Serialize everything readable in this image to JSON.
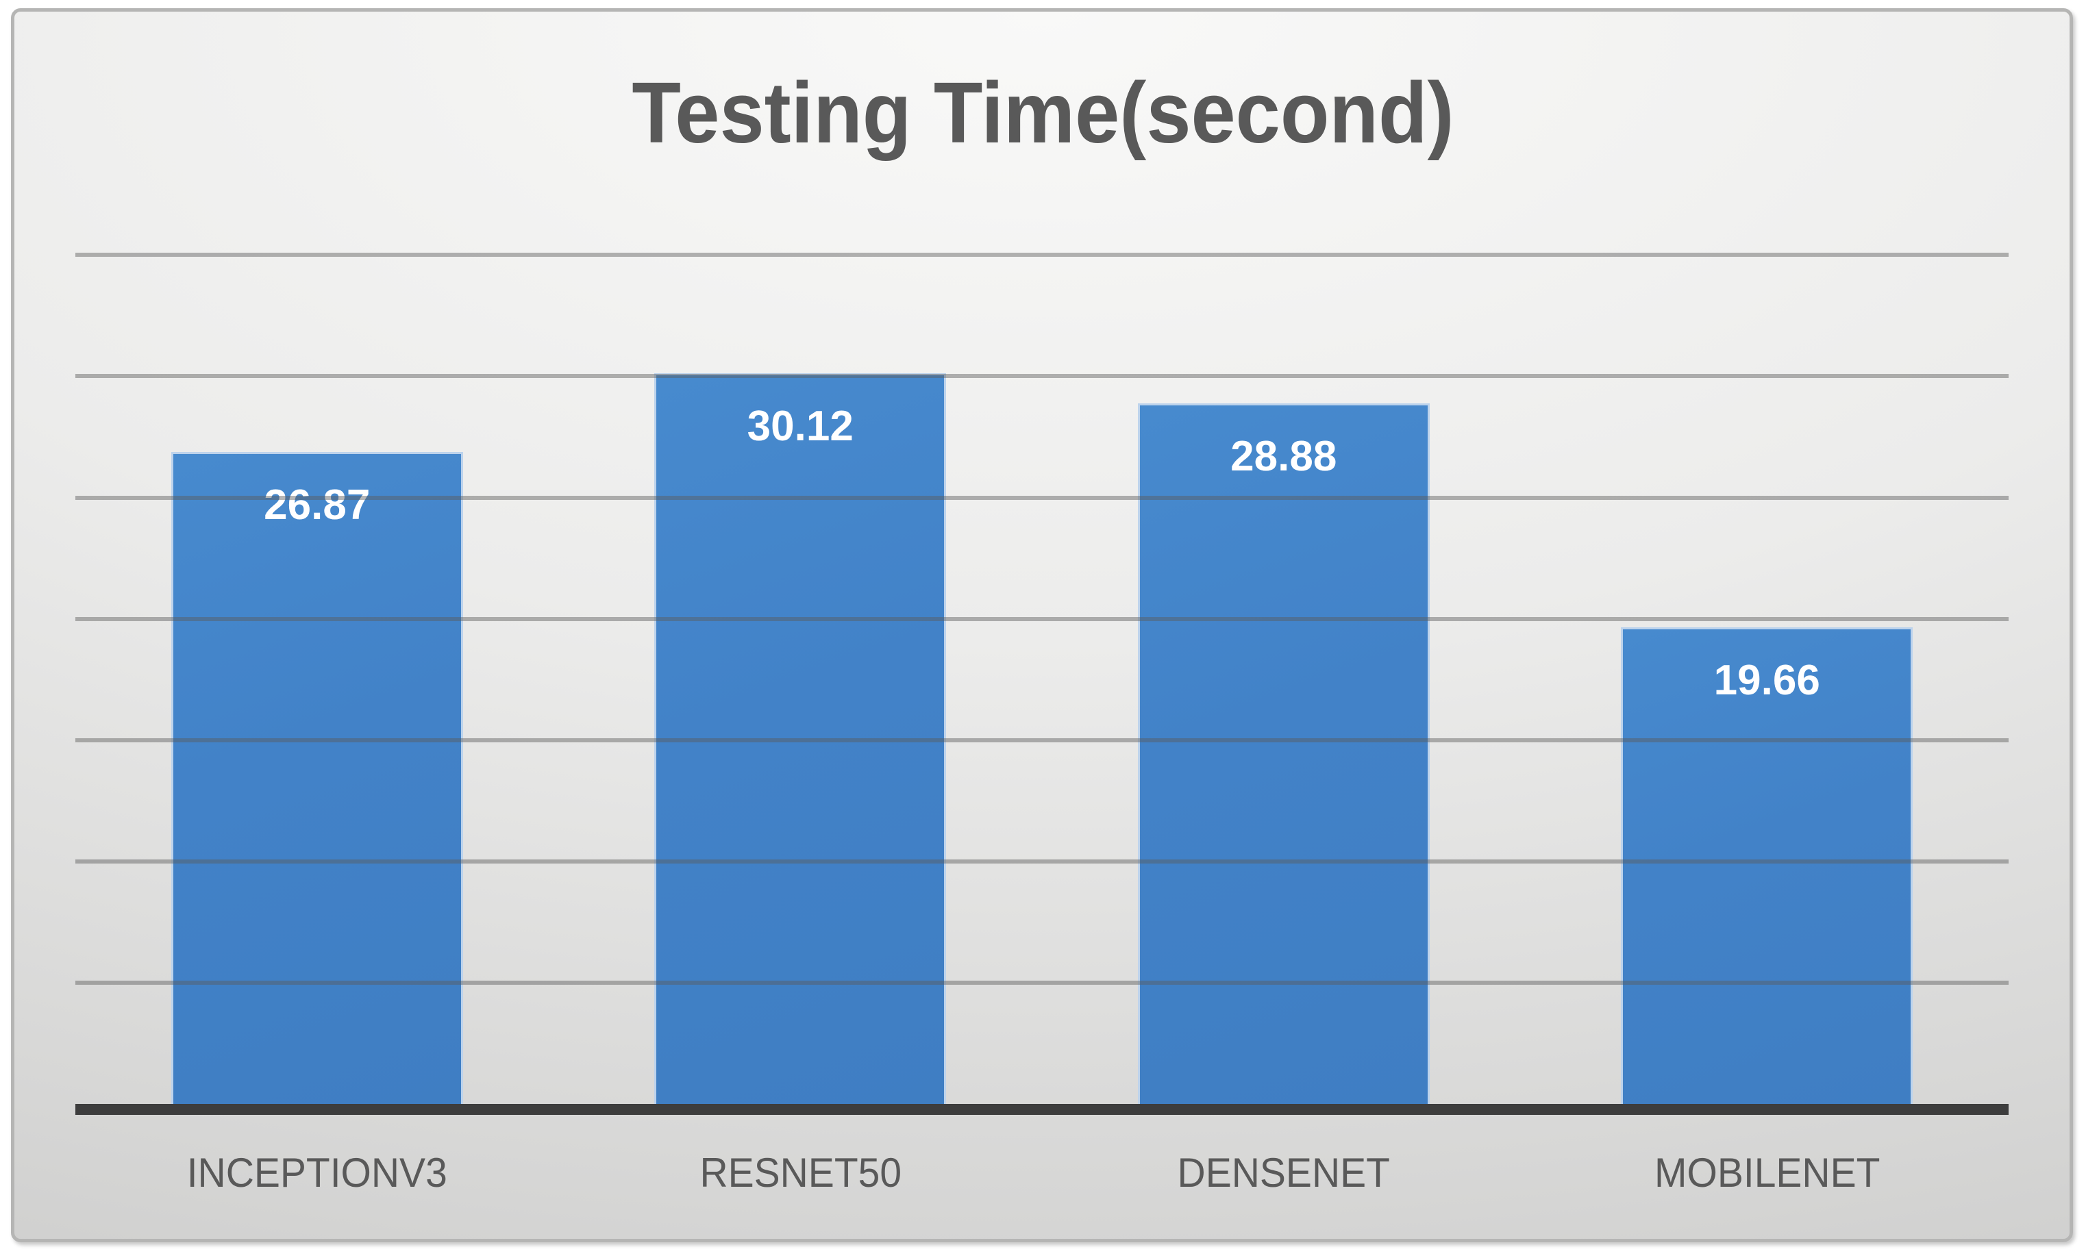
{
  "chart_data": {
    "type": "bar",
    "title": "Testing Time(second)",
    "categories": [
      "INCEPTIONV3",
      "RESNET50",
      "DENSENET",
      "MOBILENET"
    ],
    "values": [
      26.87,
      30.12,
      28.88,
      19.66
    ],
    "value_labels": [
      "26.87",
      "30.12",
      "28.88",
      "19.66"
    ],
    "series_count": 1,
    "xlabel": "",
    "ylabel": "",
    "ylim": [
      0,
      35
    ],
    "gridline_interval": 5,
    "gridline_values": [
      5,
      10,
      15,
      20,
      25,
      30,
      35
    ],
    "grid": "horizontal",
    "legend_position": "none",
    "axis_tick_labels_visible": false,
    "data_labels_position": "inside-top",
    "colors": {
      "bar_fill": "#4282C8",
      "bar_border": "#BDD3EC",
      "value_label": "#FFFFFF",
      "title_text": "#595959",
      "category_text": "#595959",
      "gridline": "#9A9A9A",
      "axis_line": "#3D3D3D",
      "background_top": "#F9F9F8",
      "background_edge": "#C3C3C2",
      "card_border": "#B5B5B4"
    }
  }
}
